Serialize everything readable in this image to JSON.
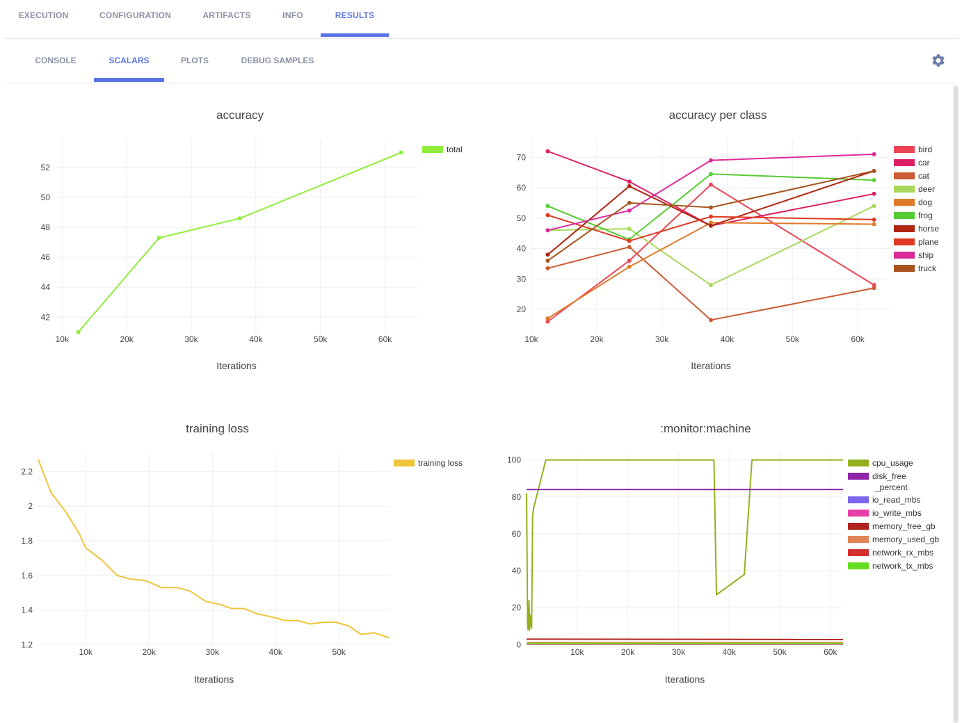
{
  "top_tabs": [
    {
      "label": "EXECUTION"
    },
    {
      "label": "CONFIGURATION"
    },
    {
      "label": "ARTIFACTS"
    },
    {
      "label": "INFO"
    },
    {
      "label": "RESULTS"
    }
  ],
  "top_active": "RESULTS",
  "sub_tabs": [
    {
      "label": "CONSOLE"
    },
    {
      "label": "SCALARS"
    },
    {
      "label": "PLOTS"
    },
    {
      "label": "DEBUG SAMPLES"
    }
  ],
  "sub_active": "SCALARS",
  "colors": {
    "accent": "#5a74e6",
    "tab_text": "#8a91a6",
    "grid": "#eeeeee"
  },
  "icons": {
    "settings": "gear-icon"
  },
  "chart_data": [
    {
      "type": "line",
      "title": "accuracy",
      "xlabel": "Iterations",
      "ylabel": "",
      "xlim": [
        9000,
        65000
      ],
      "ylim": [
        40.9,
        53.9
      ],
      "xticks": [
        10000,
        20000,
        30000,
        40000,
        50000,
        60000
      ],
      "xticklabels": [
        "10k",
        "20k",
        "30k",
        "40k",
        "50k",
        "60k"
      ],
      "yticks": [
        42,
        44,
        46,
        48,
        50,
        52
      ],
      "yticklabels": [
        "42",
        "44",
        "46",
        "48",
        "50",
        "52"
      ],
      "legend": "top-right",
      "markers": true,
      "series": [
        {
          "name": "total",
          "color": "#90ee3a",
          "x": [
            12500,
            25000,
            37500,
            62500
          ],
          "y": [
            41.0,
            47.3,
            48.6,
            53.0
          ]
        }
      ]
    },
    {
      "type": "line",
      "title": "accuracy per class",
      "xlabel": "Iterations",
      "ylabel": "",
      "xlim": [
        10000,
        65000
      ],
      "ylim": [
        12,
        76
      ],
      "xticks": [
        10000,
        20000,
        30000,
        40000,
        50000,
        60000
      ],
      "xticklabels": [
        "10k",
        "20k",
        "30k",
        "40k",
        "50k",
        "60k"
      ],
      "yticks": [
        20,
        30,
        40,
        50,
        60,
        70
      ],
      "yticklabels": [
        "20",
        "30",
        "40",
        "50",
        "60",
        "70"
      ],
      "legend": "top-right",
      "markers": true,
      "series": [
        {
          "name": "bird",
          "color": "#ee4455",
          "x": [
            12500,
            25000,
            37500,
            62500
          ],
          "y": [
            16,
            36,
            61,
            28
          ]
        },
        {
          "name": "car",
          "color": "#dd1f66",
          "x": [
            12500,
            25000,
            37500,
            62500
          ],
          "y": [
            72,
            62,
            47.5,
            58
          ]
        },
        {
          "name": "cat",
          "color": "#cc5a33",
          "x": [
            12500,
            25000,
            37500,
            62500
          ],
          "y": [
            33.5,
            40.5,
            16.5,
            27
          ]
        },
        {
          "name": "deer",
          "color": "#a8d85a",
          "x": [
            12500,
            25000,
            37500,
            62500
          ],
          "y": [
            46,
            46.5,
            28,
            54
          ]
        },
        {
          "name": "dog",
          "color": "#e07a2a",
          "x": [
            12500,
            25000,
            37500,
            62500
          ],
          "y": [
            17,
            34,
            48.5,
            48
          ]
        },
        {
          "name": "frog",
          "color": "#55cc33",
          "x": [
            12500,
            25000,
            37500,
            62500
          ],
          "y": [
            54,
            43,
            64.5,
            62.5
          ]
        },
        {
          "name": "horse",
          "color": "#b02510",
          "x": [
            12500,
            25000,
            37500,
            62500
          ],
          "y": [
            38,
            60.5,
            47.5,
            65.5
          ]
        },
        {
          "name": "plane",
          "color": "#e03a22",
          "x": [
            12500,
            25000,
            37500,
            62500
          ],
          "y": [
            51,
            42.5,
            50.5,
            49.5
          ]
        },
        {
          "name": "ship",
          "color": "#dd2a99",
          "x": [
            12500,
            25000,
            37500,
            62500
          ],
          "y": [
            46,
            52.5,
            69,
            71
          ]
        },
        {
          "name": "truck",
          "color": "#a8531e",
          "x": [
            12500,
            25000,
            37500,
            62500
          ],
          "y": [
            36,
            55,
            53.5,
            65.5
          ]
        }
      ]
    },
    {
      "type": "line",
      "title": "training loss",
      "xlabel": "Iterations",
      "ylabel": "",
      "xlim": [
        2500,
        58000
      ],
      "ylim": [
        1.19,
        2.31
      ],
      "xticks": [
        10000,
        20000,
        30000,
        40000,
        50000
      ],
      "xticklabels": [
        "10k",
        "20k",
        "30k",
        "40k",
        "50k"
      ],
      "yticks": [
        1.2,
        1.4,
        1.6,
        1.8,
        2.0,
        2.2
      ],
      "yticklabels": [
        "1.2",
        "1.4",
        "1.6",
        "1.8",
        "2",
        "2.2"
      ],
      "legend": "top-right",
      "markers": false,
      "series": [
        {
          "name": "training loss",
          "color": "#f0c43a",
          "x": [
            2500,
            4500,
            7000,
            9000,
            10000,
            12500,
            15000,
            17000,
            19500,
            22000,
            24500,
            26500,
            29000,
            31500,
            33000,
            35000,
            37000,
            39500,
            41500,
            43500,
            45500,
            47500,
            49500,
            51500,
            53500,
            55500,
            58000
          ],
          "y": [
            2.27,
            2.08,
            1.96,
            1.84,
            1.76,
            1.69,
            1.6,
            1.58,
            1.57,
            1.53,
            1.53,
            1.51,
            1.45,
            1.43,
            1.41,
            1.41,
            1.38,
            1.36,
            1.34,
            1.34,
            1.32,
            1.33,
            1.33,
            1.31,
            1.26,
            1.27,
            1.24
          ]
        }
      ]
    },
    {
      "type": "line",
      "title": ":monitor:machine",
      "xlabel": "Iterations",
      "ylabel": "",
      "xlim": [
        0,
        62500
      ],
      "ylim": [
        -1,
        104
      ],
      "xticks": [
        10000,
        20000,
        30000,
        40000,
        50000,
        60000
      ],
      "xticklabels": [
        "10k",
        "20k",
        "30k",
        "40k",
        "50k",
        "60k"
      ],
      "yticks": [
        0,
        20,
        40,
        60,
        80,
        100
      ],
      "yticklabels": [
        "0",
        "20",
        "40",
        "60",
        "80",
        "100"
      ],
      "legend": "top-right",
      "markers": false,
      "series": [
        {
          "name": "cpu_usage",
          "color": "#92b01e",
          "x": [
            0,
            200,
            300,
            400,
            500,
            600,
            700,
            800,
            900,
            1000,
            1200,
            1300,
            1400,
            1500,
            3800,
            37000,
            37500,
            43000,
            44500,
            62500
          ],
          "y": [
            82,
            10,
            8,
            12,
            24,
            8,
            16,
            10,
            14,
            9,
            70,
            72,
            74,
            75,
            100,
            100,
            27,
            38,
            100,
            100
          ]
        },
        {
          "name": "disk_free_percent",
          "color": "#8e24aa",
          "x": [
            0,
            62500
          ],
          "y": [
            84,
            84
          ]
        },
        {
          "name": "io_read_mbs",
          "color": "#7b68ee",
          "x": [
            0,
            62500
          ],
          "y": [
            0.3,
            0.3
          ]
        },
        {
          "name": "io_write_mbs",
          "color": "#e83ea8",
          "x": [
            0,
            62500
          ],
          "y": [
            0.2,
            0.2
          ]
        },
        {
          "name": "memory_free_gb",
          "color": "#b2221f",
          "x": [
            0,
            62500
          ],
          "y": [
            3.0,
            2.8
          ]
        },
        {
          "name": "memory_used_gb",
          "color": "#e08555",
          "x": [
            0,
            62500
          ],
          "y": [
            1.2,
            1.2
          ]
        },
        {
          "name": "network_rx_mbs",
          "color": "#d32f2f",
          "x": [
            0,
            62500
          ],
          "y": [
            0.5,
            0.5
          ]
        },
        {
          "name": "network_tx_mbs",
          "color": "#66dd22",
          "x": [
            0,
            62500
          ],
          "y": [
            0.6,
            0.6
          ]
        }
      ],
      "legend_labels": [
        [
          "cpu_usage"
        ],
        [
          "disk_free",
          "_percent"
        ],
        [
          "io_read_mbs"
        ],
        [
          "io_write_mbs"
        ],
        [
          "memory_free_gb"
        ],
        [
          "memory_used_gb"
        ],
        [
          "network_rx_mbs"
        ],
        [
          "network_tx_mbs"
        ]
      ]
    }
  ]
}
